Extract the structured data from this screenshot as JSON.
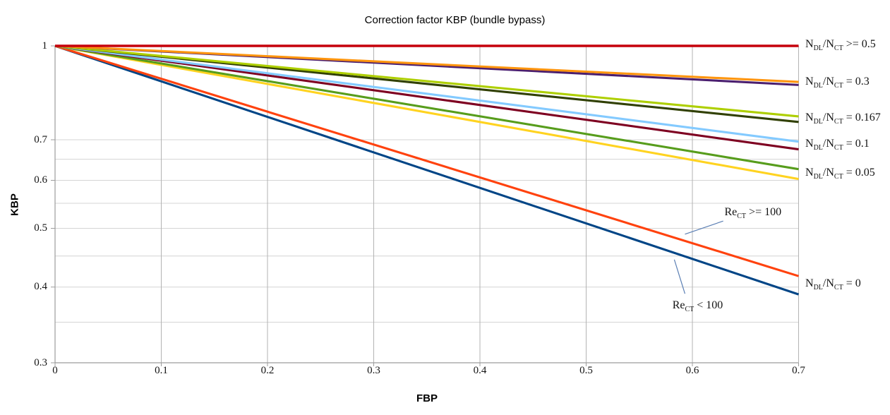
{
  "chart_data": {
    "type": "line",
    "title": "Correction factor KBP (bundle bypass)",
    "xlabel": "FBP",
    "ylabel": "KBP",
    "x_scale": "linear",
    "y_scale": "log",
    "xlim": [
      0,
      0.7
    ],
    "ylim": [
      0.3,
      1.0
    ],
    "grid": true,
    "legend_position": "right-inline-labels",
    "x_ticks": [
      {
        "v": 0.0,
        "label": "0"
      },
      {
        "v": 0.1,
        "label": "0.1"
      },
      {
        "v": 0.2,
        "label": "0.2"
      },
      {
        "v": 0.3,
        "label": "0.3"
      },
      {
        "v": 0.4,
        "label": "0.4"
      },
      {
        "v": 0.5,
        "label": "0.5"
      },
      {
        "v": 0.6,
        "label": "0.6"
      },
      {
        "v": 0.7,
        "label": "0.7"
      }
    ],
    "y_tick_labels": [
      {
        "v": 1.0,
        "label": "1"
      },
      {
        "v": 0.7,
        "label": "0.7"
      },
      {
        "v": 0.6,
        "label": "0.6"
      },
      {
        "v": 0.5,
        "label": "0.5"
      },
      {
        "v": 0.4,
        "label": "0.4"
      },
      {
        "v": 0.3,
        "label": "0.3"
      }
    ],
    "y_gridlines": [
      1.0,
      0.7,
      0.65,
      0.6,
      0.55,
      0.5,
      0.45,
      0.4,
      0.35,
      0.3
    ],
    "series": [
      {
        "name": "NDL/NCT = 0, ReCT < 100",
        "color": "#004586",
        "x": [
          0,
          0.7
        ],
        "y": [
          1.0,
          0.389
        ]
      },
      {
        "name": "NDL/NCT = 0, ReCT >= 100",
        "color": "#FF420E",
        "x": [
          0,
          0.7
        ],
        "y": [
          1.0,
          0.417
        ]
      },
      {
        "name": "NDL/NCT = 0.05, ReCT < 100",
        "color": "#FFD320",
        "x": [
          0,
          0.7
        ],
        "y": [
          1.0,
          0.603
        ]
      },
      {
        "name": "NDL/NCT = 0.05, ReCT >= 100",
        "color": "#579D1C",
        "x": [
          0,
          0.7
        ],
        "y": [
          1.0,
          0.626
        ]
      },
      {
        "name": "NDL/NCT = 0.1, ReCT < 100",
        "color": "#7E0021",
        "x": [
          0,
          0.7
        ],
        "y": [
          1.0,
          0.675
        ]
      },
      {
        "name": "NDL/NCT = 0.1, ReCT >= 100",
        "color": "#83CAFF",
        "x": [
          0,
          0.7
        ],
        "y": [
          1.0,
          0.695
        ]
      },
      {
        "name": "NDL/NCT = 0.167, ReCT < 100",
        "color": "#314004",
        "x": [
          0,
          0.7
        ],
        "y": [
          1.0,
          0.749
        ]
      },
      {
        "name": "NDL/NCT = 0.167, ReCT >= 100",
        "color": "#AECF00",
        "x": [
          0,
          0.7
        ],
        "y": [
          1.0,
          0.765
        ]
      },
      {
        "name": "NDL/NCT = 0.3, ReCT < 100",
        "color": "#4B1F6F",
        "x": [
          0,
          0.7
        ],
        "y": [
          1.0,
          0.862
        ]
      },
      {
        "name": "NDL/NCT = 0.3, ReCT >= 100",
        "color": "#FF950E",
        "x": [
          0,
          0.7
        ],
        "y": [
          1.0,
          0.872
        ]
      },
      {
        "name": "NDL/NCT >= 0.5",
        "color": "#C5000B",
        "x": [
          0,
          0.7
        ],
        "y": [
          1.0,
          1.0
        ]
      }
    ],
    "right_labels": [
      {
        "series": [
          10
        ],
        "segments": [
          {
            "t": "N"
          },
          {
            "t": "DL",
            "sub": true
          },
          {
            "t": "/N"
          },
          {
            "t": "CT",
            "sub": true
          },
          {
            "t": " >= 0.5"
          }
        ]
      },
      {
        "series": [
          8,
          9
        ],
        "segments": [
          {
            "t": "N"
          },
          {
            "t": "DL",
            "sub": true
          },
          {
            "t": "/N"
          },
          {
            "t": "CT",
            "sub": true
          },
          {
            "t": " = 0.3"
          }
        ]
      },
      {
        "series": [
          6,
          7
        ],
        "segments": [
          {
            "t": "N"
          },
          {
            "t": "DL",
            "sub": true
          },
          {
            "t": "/N"
          },
          {
            "t": "CT",
            "sub": true
          },
          {
            "t": " = 0.167"
          }
        ]
      },
      {
        "series": [
          4,
          5
        ],
        "segments": [
          {
            "t": "N"
          },
          {
            "t": "DL",
            "sub": true
          },
          {
            "t": "/N"
          },
          {
            "t": "CT",
            "sub": true
          },
          {
            "t": " = 0.1"
          }
        ]
      },
      {
        "series": [
          2,
          3
        ],
        "segments": [
          {
            "t": "N"
          },
          {
            "t": "DL",
            "sub": true
          },
          {
            "t": "/N"
          },
          {
            "t": "CT",
            "sub": true
          },
          {
            "t": " = 0.05"
          }
        ]
      },
      {
        "series": [
          0,
          1
        ],
        "segments": [
          {
            "t": "N"
          },
          {
            "t": "DL",
            "sub": true
          },
          {
            "t": "/N"
          },
          {
            "t": "CT",
            "sub": true
          },
          {
            "t": " = 0"
          }
        ]
      }
    ],
    "annotations": [
      {
        "segments": [
          {
            "t": "Re"
          },
          {
            "t": "CT",
            "sub": true
          },
          {
            "t": " >= 100"
          }
        ],
        "text_at": {
          "fbp": 0.657,
          "kbp": 0.53
        },
        "leader": {
          "from": {
            "fbp": 0.629,
            "kbp": 0.514
          },
          "to": {
            "fbp": 0.593,
            "kbp": 0.489
          }
        }
      },
      {
        "segments": [
          {
            "t": "Re"
          },
          {
            "t": "CT",
            "sub": true
          },
          {
            "t": " < 100"
          }
        ],
        "text_at": {
          "fbp": 0.605,
          "kbp": 0.372
        },
        "leader": {
          "from": {
            "fbp": 0.593,
            "kbp": 0.39
          },
          "to": {
            "fbp": 0.583,
            "kbp": 0.444
          }
        }
      }
    ],
    "colors": {
      "h_grid": "#D4D4D4",
      "v_grid": "#B3B3B3",
      "axis": "#9C9C9C",
      "leader_line": "#5B7FB4",
      "text": "#141414"
    }
  }
}
